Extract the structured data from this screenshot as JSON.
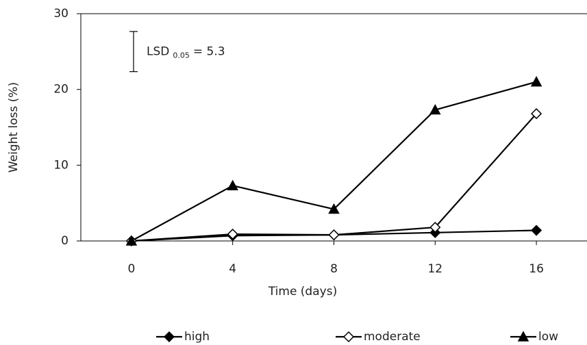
{
  "chart_data": {
    "type": "line",
    "x": [
      0,
      4,
      8,
      12,
      16
    ],
    "series": [
      {
        "name": "high",
        "color": "#000000",
        "marker": "diamond",
        "marker_fill": "#000000",
        "values": [
          0,
          0.7,
          0.8,
          1.1,
          1.4
        ]
      },
      {
        "name": "moderate",
        "color": "#000000",
        "marker": "diamond",
        "marker_fill": "#ffffff",
        "values": [
          0,
          0.9,
          0.8,
          1.8,
          16.8
        ]
      },
      {
        "name": "low",
        "color": "#000000",
        "marker": "triangle",
        "marker_fill": "#000000",
        "values": [
          0,
          7.3,
          4.2,
          17.3,
          21.0
        ]
      }
    ],
    "xlabel": "Time (days)",
    "ylabel": "Weight loss (%)",
    "xlim": [
      -2,
      18
    ],
    "xticks": [
      0,
      4,
      8,
      12,
      16
    ],
    "ylim": [
      0,
      30
    ],
    "yticks": [
      0,
      10,
      20,
      30
    ],
    "legend": "bottom",
    "annotation": {
      "label": "LSD",
      "subscript": "0.05",
      "text": "= 5.3",
      "value": 5.3
    }
  }
}
